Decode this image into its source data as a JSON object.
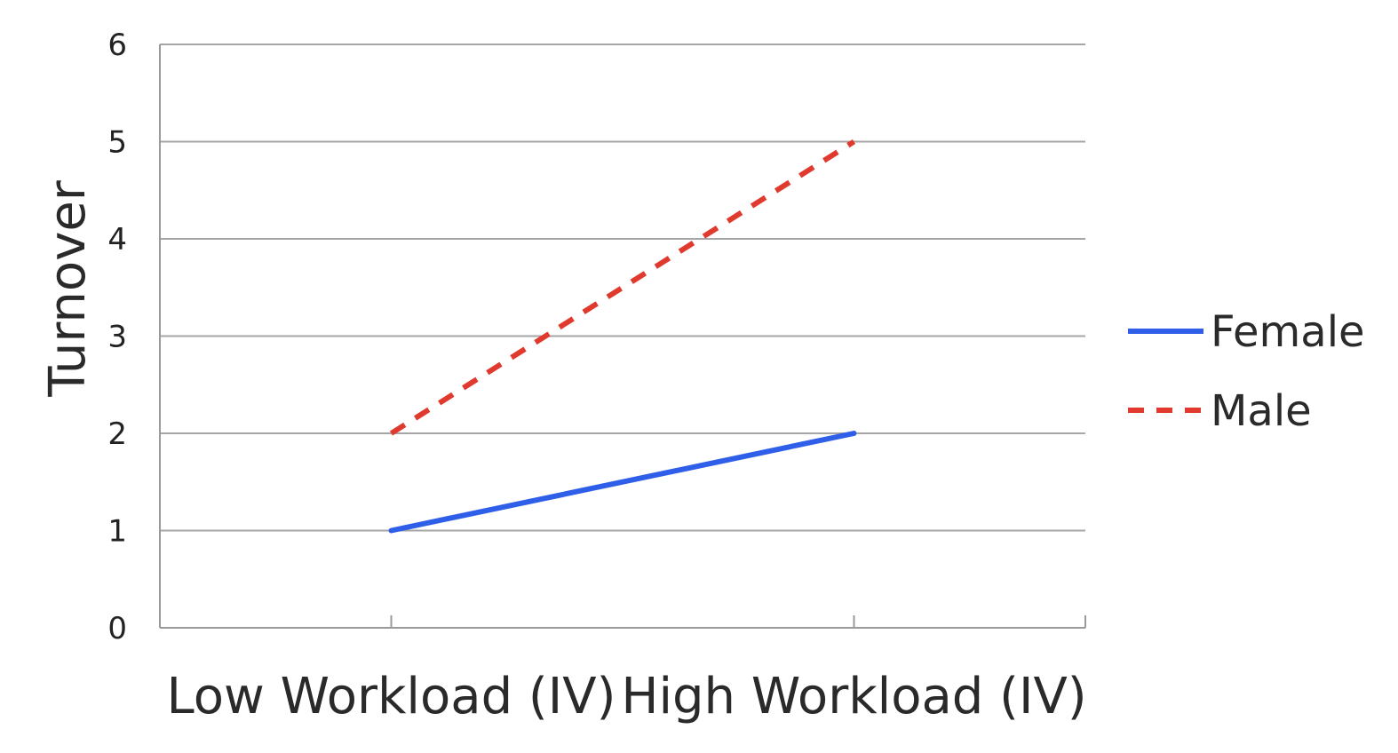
{
  "chart_data": {
    "type": "line",
    "title": "",
    "xlabel": "",
    "ylabel": "Turnover",
    "categories": [
      "Low Workload (IV)",
      "High Workload (IV)"
    ],
    "ylim": [
      0,
      6
    ],
    "yticks": [
      0,
      1,
      2,
      3,
      4,
      5,
      6
    ],
    "grid": true,
    "legend_position": "right",
    "series": [
      {
        "name": "Female",
        "values": [
          1,
          2
        ],
        "color": "#2f5fe8",
        "dash": "solid"
      },
      {
        "name": "Male",
        "values": [
          2,
          5
        ],
        "color": "#e03a2e",
        "dash": "dashed"
      }
    ]
  }
}
